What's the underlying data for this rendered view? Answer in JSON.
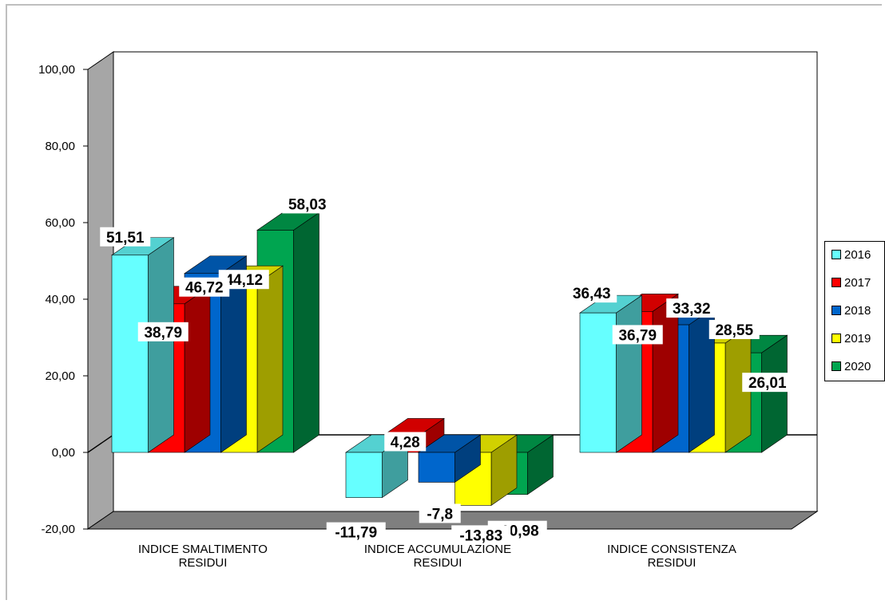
{
  "chart_data": {
    "type": "bar",
    "title": "",
    "xlabel": "",
    "ylabel": "",
    "ylim": [
      -20,
      100
    ],
    "y_ticks": [
      "100,00",
      "80,00",
      "60,00",
      "40,00",
      "20,00",
      "0,00",
      "-20,00"
    ],
    "categories": [
      {
        "line1": "INDICE SMALTIMENTO",
        "line2": "RESIDUI"
      },
      {
        "line1": "INDICE ACCUMULAZIONE",
        "line2": "RESIDUI"
      },
      {
        "line1": "INDICE CONSISTENZA",
        "line2": "RESIDUI"
      }
    ],
    "series": [
      {
        "name": "2016",
        "color": "#66ffff",
        "values": [
          51.51,
          -11.79,
          36.43
        ],
        "labels": [
          "51,51",
          "-11,79",
          "36,43"
        ]
      },
      {
        "name": "2017",
        "color": "#ff0000",
        "values": [
          38.79,
          4.28,
          36.79
        ],
        "labels": [
          "38,79",
          "4,28",
          "36,79"
        ]
      },
      {
        "name": "2018",
        "color": "#0066cc",
        "values": [
          46.72,
          -7.8,
          33.32
        ],
        "labels": [
          "46,72",
          "-7,8",
          "33,32"
        ]
      },
      {
        "name": "2019",
        "color": "#ffff00",
        "values": [
          44.12,
          -13.83,
          28.55
        ],
        "labels": [
          "44,12",
          "-13,83",
          "28,55"
        ]
      },
      {
        "name": "2020",
        "color": "#00a550",
        "values": [
          58.03,
          -10.98,
          26.01
        ],
        "labels": [
          "58,03",
          "-10,98",
          "26,01"
        ]
      }
    ],
    "legend_position": "right",
    "grid": false,
    "view": "3d"
  }
}
